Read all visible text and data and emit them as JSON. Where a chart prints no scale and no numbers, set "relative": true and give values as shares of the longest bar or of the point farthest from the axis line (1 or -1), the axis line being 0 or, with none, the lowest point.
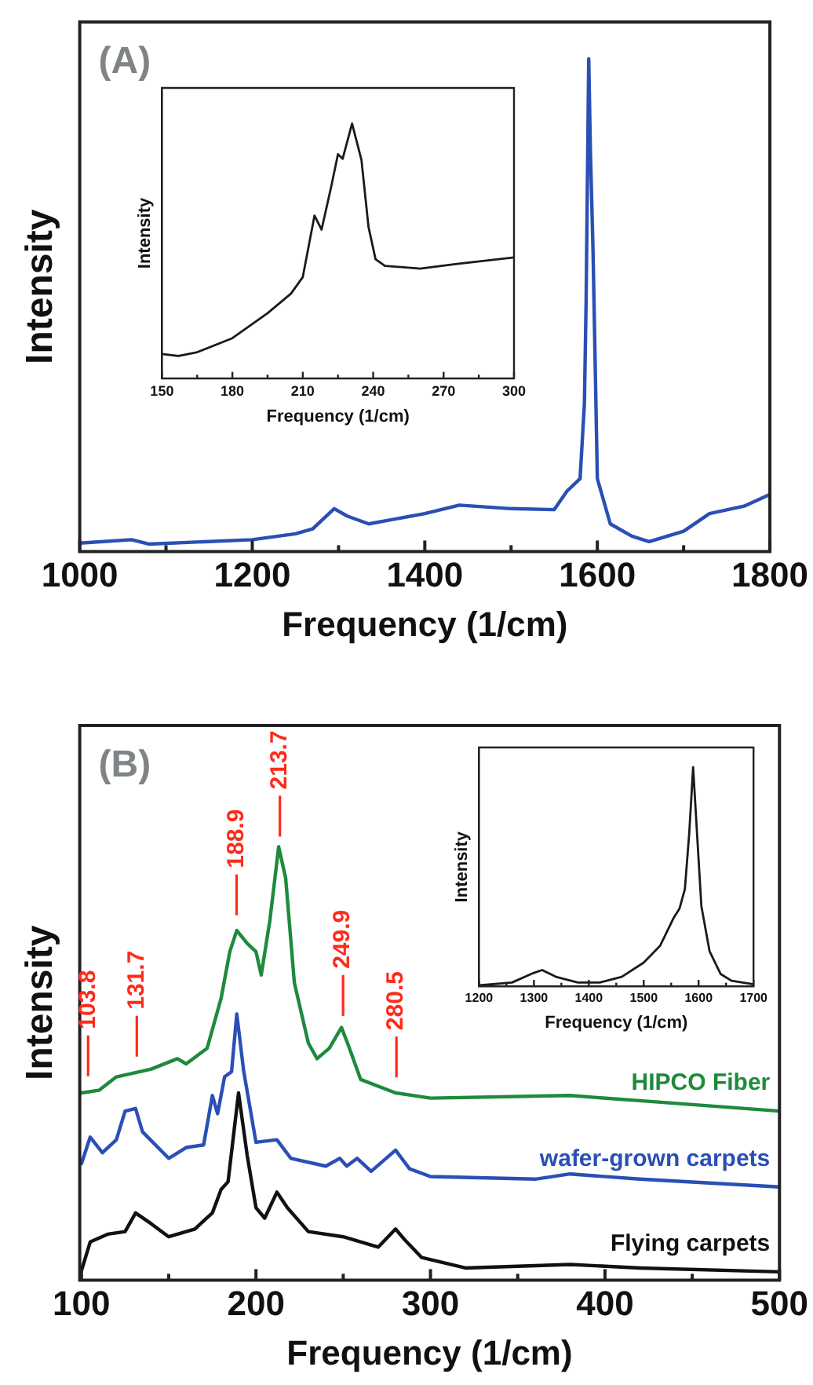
{
  "chart_data": [
    {
      "type": "line",
      "xlabel": "Frequency (1/cm)",
      "ylabel": "Intensity",
      "relative": true,
      "tick_labels": "x",
      "annotations": [
        "(A)"
      ],
      "xlim": [
        1000,
        1800
      ],
      "xticks": [
        1000,
        {
          "value": 1100,
          "label": null
        },
        1200,
        {
          "value": 1300,
          "label": null
        },
        1400,
        {
          "value": 1500,
          "label": null
        },
        1600,
        {
          "value": 1700,
          "label": null
        },
        1800
      ],
      "x": [
        1000,
        1060,
        1080,
        1200,
        1250,
        1270,
        1295,
        1310,
        1335,
        1400,
        1440,
        1500,
        1550,
        1565,
        1580,
        1585,
        1587,
        1590,
        1592,
        1595,
        1600,
        1615,
        1640,
        1660,
        1700,
        1730,
        1770,
        1800
      ],
      "series": [
        {
          "color": "#2a4fb5",
          "values": [
            0.017,
            0.024,
            0.015,
            0.024,
            0.036,
            0.046,
            0.087,
            0.072,
            0.056,
            0.077,
            0.094,
            0.087,
            0.085,
            0.123,
            0.148,
            0.3,
            0.51,
            1,
            0.81,
            0.61,
            0.148,
            0.056,
            0.031,
            0.02,
            0.041,
            0.077,
            0.092,
            0.116
          ]
        }
      ]
    },
    {
      "type": "line",
      "xlabel": "Frequency (1/cm)",
      "ylabel": "Intensity",
      "relative": true,
      "tick_labels": "x",
      "xlim": [
        150,
        300
      ],
      "xticks": [
        150,
        {
          "value": 165,
          "label": null
        },
        180,
        {
          "value": 195,
          "label": null
        },
        210,
        {
          "value": 225,
          "label": null
        },
        240,
        {
          "value": 255,
          "label": null
        },
        270,
        {
          "value": 285,
          "label": null
        },
        300
      ],
      "x": [
        150,
        157,
        165,
        180,
        195,
        205,
        210,
        215,
        218,
        222,
        225,
        227,
        231,
        235,
        238,
        241,
        245,
        260,
        275,
        300
      ],
      "series": [
        {
          "color": "#1a1a1a",
          "values": [
            0.096,
            0.088,
            0.103,
            0.158,
            0.256,
            0.333,
            0.398,
            0.639,
            0.584,
            0.748,
            0.88,
            0.862,
            1,
            0.858,
            0.595,
            0.468,
            0.442,
            0.431,
            0.449,
            0.475
          ]
        }
      ]
    },
    {
      "type": "line",
      "xlabel": "Frequency (1/cm)",
      "ylabel": "Intensity",
      "relative": true,
      "tick_labels": "x",
      "annotations": [
        "(B)"
      ],
      "ref_lines": [
        {
          "axis": "x",
          "value": 103.8,
          "label": "103.8",
          "color": "#ff2a1a"
        },
        {
          "axis": "x",
          "value": 131.7,
          "label": "131.7",
          "color": "#ff2a1a"
        },
        {
          "axis": "x",
          "value": 188.9,
          "label": "188.9",
          "color": "#ff2a1a"
        },
        {
          "axis": "x",
          "value": 213.7,
          "label": "213.7",
          "color": "#ff2a1a"
        },
        {
          "axis": "x",
          "value": 249.9,
          "label": "249.9",
          "color": "#ff2a1a"
        },
        {
          "axis": "x",
          "value": 280.5,
          "label": "280.5",
          "color": "#ff2a1a"
        }
      ],
      "xlim": [
        99,
        500
      ],
      "xticks": [
        100,
        {
          "value": 150,
          "label": null
        },
        200,
        {
          "value": 250,
          "label": null
        },
        300,
        {
          "value": 350,
          "label": null
        },
        400,
        {
          "value": 450,
          "label": null
        },
        500
      ],
      "series": [
        {
          "name": "HIPCO Fiber",
          "color": "#1e8a3c",
          "x": [
            100,
            110,
            120,
            140,
            155,
            160,
            172,
            180,
            185,
            189,
            195,
            200,
            203,
            208,
            213,
            217,
            222,
            230,
            235,
            242,
            249,
            253,
            260,
            280,
            300,
            380,
            420,
            500
          ],
          "values": [
            0.432,
            0.438,
            0.469,
            0.487,
            0.511,
            0.499,
            0.535,
            0.65,
            0.758,
            0.807,
            0.777,
            0.758,
            0.704,
            0.831,
            1,
            0.928,
            0.686,
            0.547,
            0.511,
            0.535,
            0.583,
            0.541,
            0.463,
            0.432,
            0.42,
            0.426,
            0.414,
            0.39
          ]
        },
        {
          "name": "wafer-grown carpets",
          "color": "#2a4fb5",
          "x": [
            100,
            105,
            112,
            120,
            125,
            131,
            135,
            150,
            160,
            170,
            175,
            178,
            182,
            186,
            189,
            193,
            200,
            212,
            220,
            240,
            248,
            252,
            258,
            266,
            280,
            288,
            300,
            360,
            380,
            420,
            500
          ],
          "values": [
            0.269,
            0.33,
            0.294,
            0.324,
            0.39,
            0.396,
            0.342,
            0.281,
            0.306,
            0.312,
            0.426,
            0.384,
            0.469,
            0.481,
            0.614,
            0.481,
            0.318,
            0.324,
            0.281,
            0.263,
            0.281,
            0.263,
            0.281,
            0.251,
            0.3,
            0.257,
            0.239,
            0.233,
            0.245,
            0.233,
            0.215
          ]
        },
        {
          "name": "Flying carpets",
          "color": "#111111",
          "x": [
            100,
            105,
            115,
            125,
            131,
            140,
            150,
            165,
            175,
            180,
            184,
            190,
            195,
            200,
            205,
            212,
            218,
            230,
            250,
            270,
            280,
            285,
            295,
            320,
            380,
            420,
            500
          ],
          "values": [
            0.022,
            0.088,
            0.106,
            0.112,
            0.155,
            0.13,
            0.1,
            0.118,
            0.155,
            0.209,
            0.227,
            0.432,
            0.287,
            0.167,
            0.143,
            0.203,
            0.167,
            0.112,
            0.1,
            0.076,
            0.118,
            0.094,
            0.052,
            0.028,
            0.036,
            0.028,
            0.019
          ]
        }
      ]
    },
    {
      "type": "line",
      "xlabel": "Frequency (1/cm)",
      "ylabel": "Intensity",
      "relative": true,
      "tick_labels": "x",
      "xlim": [
        1200,
        1700
      ],
      "xticks": [
        1200,
        {
          "value": 1250,
          "label": null
        },
        1300,
        {
          "value": 1350,
          "label": null
        },
        1400,
        {
          "value": 1450,
          "label": null
        },
        1500,
        {
          "value": 1550,
          "label": null
        },
        1600,
        {
          "value": 1650,
          "label": null
        },
        1700
      ],
      "x": [
        1200,
        1260,
        1300,
        1315,
        1340,
        1380,
        1420,
        1460,
        1500,
        1530,
        1555,
        1565,
        1575,
        1583,
        1590,
        1597,
        1605,
        1620,
        1640,
        1660,
        1700
      ],
      "series": [
        {
          "color": "#1a1a1a",
          "values": [
            0.005,
            0.018,
            0.062,
            0.075,
            0.044,
            0.018,
            0.018,
            0.044,
            0.109,
            0.186,
            0.315,
            0.354,
            0.444,
            0.703,
            1,
            0.703,
            0.367,
            0.16,
            0.057,
            0.026,
            0.01
          ]
        }
      ]
    }
  ]
}
